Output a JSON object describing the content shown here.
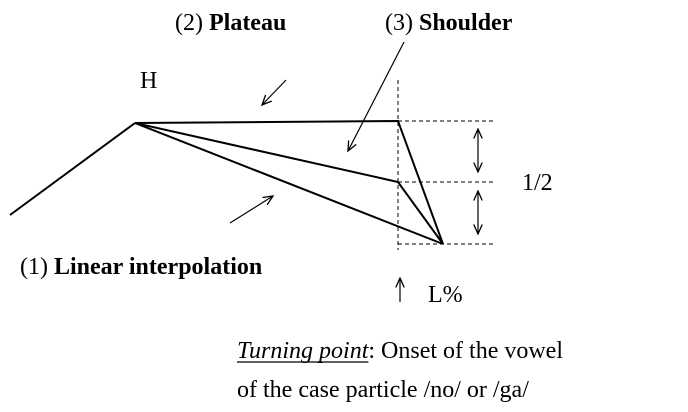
{
  "labels": {
    "plateau": {
      "number": "(2)",
      "name": "Plateau"
    },
    "shoulder": {
      "number": "(3)",
      "name": "Shoulder"
    },
    "linear": {
      "number": "(1)",
      "name": "Linear interpolation"
    }
  },
  "high_tone": "H",
  "half": "1/2",
  "boundary_tone": "L%",
  "turning_point": {
    "term": "Turning point",
    "text": ": Onset of the vowel",
    "line2": "of the case particle /no/ or /ga/"
  }
}
